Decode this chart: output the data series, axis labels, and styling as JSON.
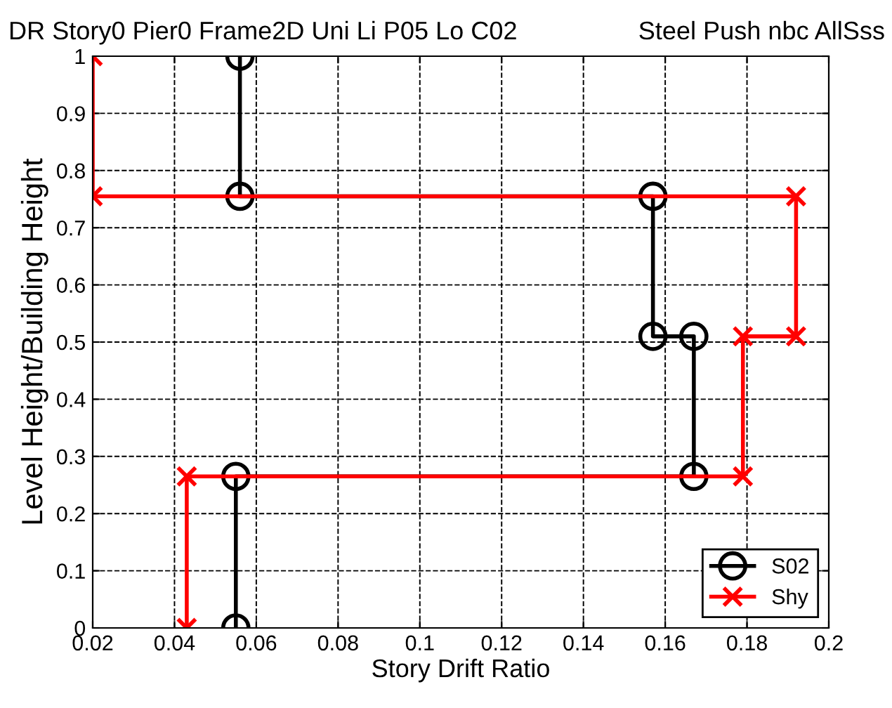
{
  "chart_data": {
    "type": "line",
    "title": "DR Story0 Pier0 Frame2D Uni Li P05 Lo C02",
    "subtitle": "Steel Push nbc AllSss",
    "xlabel": "Story Drift Ratio",
    "ylabel": "Level Height/Building Height",
    "series": [
      {
        "name": "S02",
        "color": "#000000",
        "marker": "circle",
        "x": [
          0.055,
          0.055,
          0.167,
          0.167,
          0.157,
          0.157,
          0.056,
          0.056
        ],
        "values": [
          0,
          0.265,
          0.265,
          0.51,
          0.51,
          0.755,
          0.755,
          1
        ]
      },
      {
        "name": "Shy",
        "color": "#ff0000",
        "marker": "cross",
        "x": [
          0.043,
          0.043,
          0.179,
          0.179,
          0.192,
          0.192,
          0.02,
          0.02
        ],
        "values": [
          0,
          0.265,
          0.265,
          0.51,
          0.51,
          0.755,
          0.755,
          1
        ]
      }
    ],
    "xlim": [
      0.02,
      0.2
    ],
    "xticks": [
      0.02,
      0.04,
      0.06,
      0.08,
      0.1,
      0.12,
      0.14,
      0.16,
      0.18,
      0.2
    ],
    "ylim": [
      0,
      1
    ],
    "yticks": [
      0,
      0.1,
      0.2,
      0.3,
      0.4,
      0.5,
      0.6,
      0.7,
      0.8,
      0.9,
      1
    ],
    "grid": true,
    "legend": "bottom right",
    "line_style": "solid"
  }
}
